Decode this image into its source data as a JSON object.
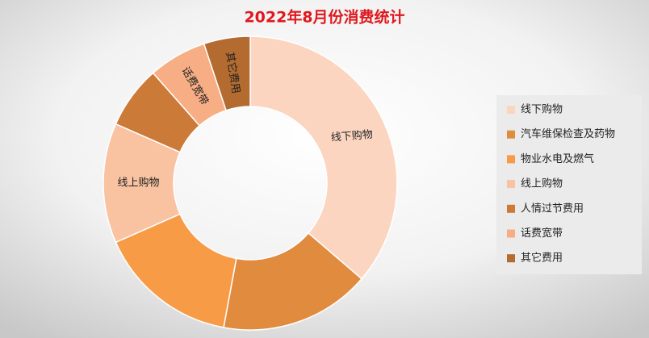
{
  "chart_data": {
    "type": "donut",
    "title": "2022年8月份消费统计",
    "categories": [
      "线下购物",
      "汽车维保检查及药物",
      "物业水电及燃气",
      "线上购物",
      "人情过节费用",
      "话费宽带",
      "其它费用"
    ],
    "values": [
      36.3,
      16.6,
      15.5,
      13.2,
      6.9,
      6.4,
      5.1
    ],
    "colors": [
      "#fbd5c0",
      "#e08b3e",
      "#f79b47",
      "#f9c3a2",
      "#cc7a38",
      "#f8ae84",
      "#b36b2f"
    ],
    "data_labels": [
      "线下购物",
      null,
      null,
      "线上购物",
      null,
      "话费宽带",
      "其它费用"
    ],
    "legend": "right"
  }
}
